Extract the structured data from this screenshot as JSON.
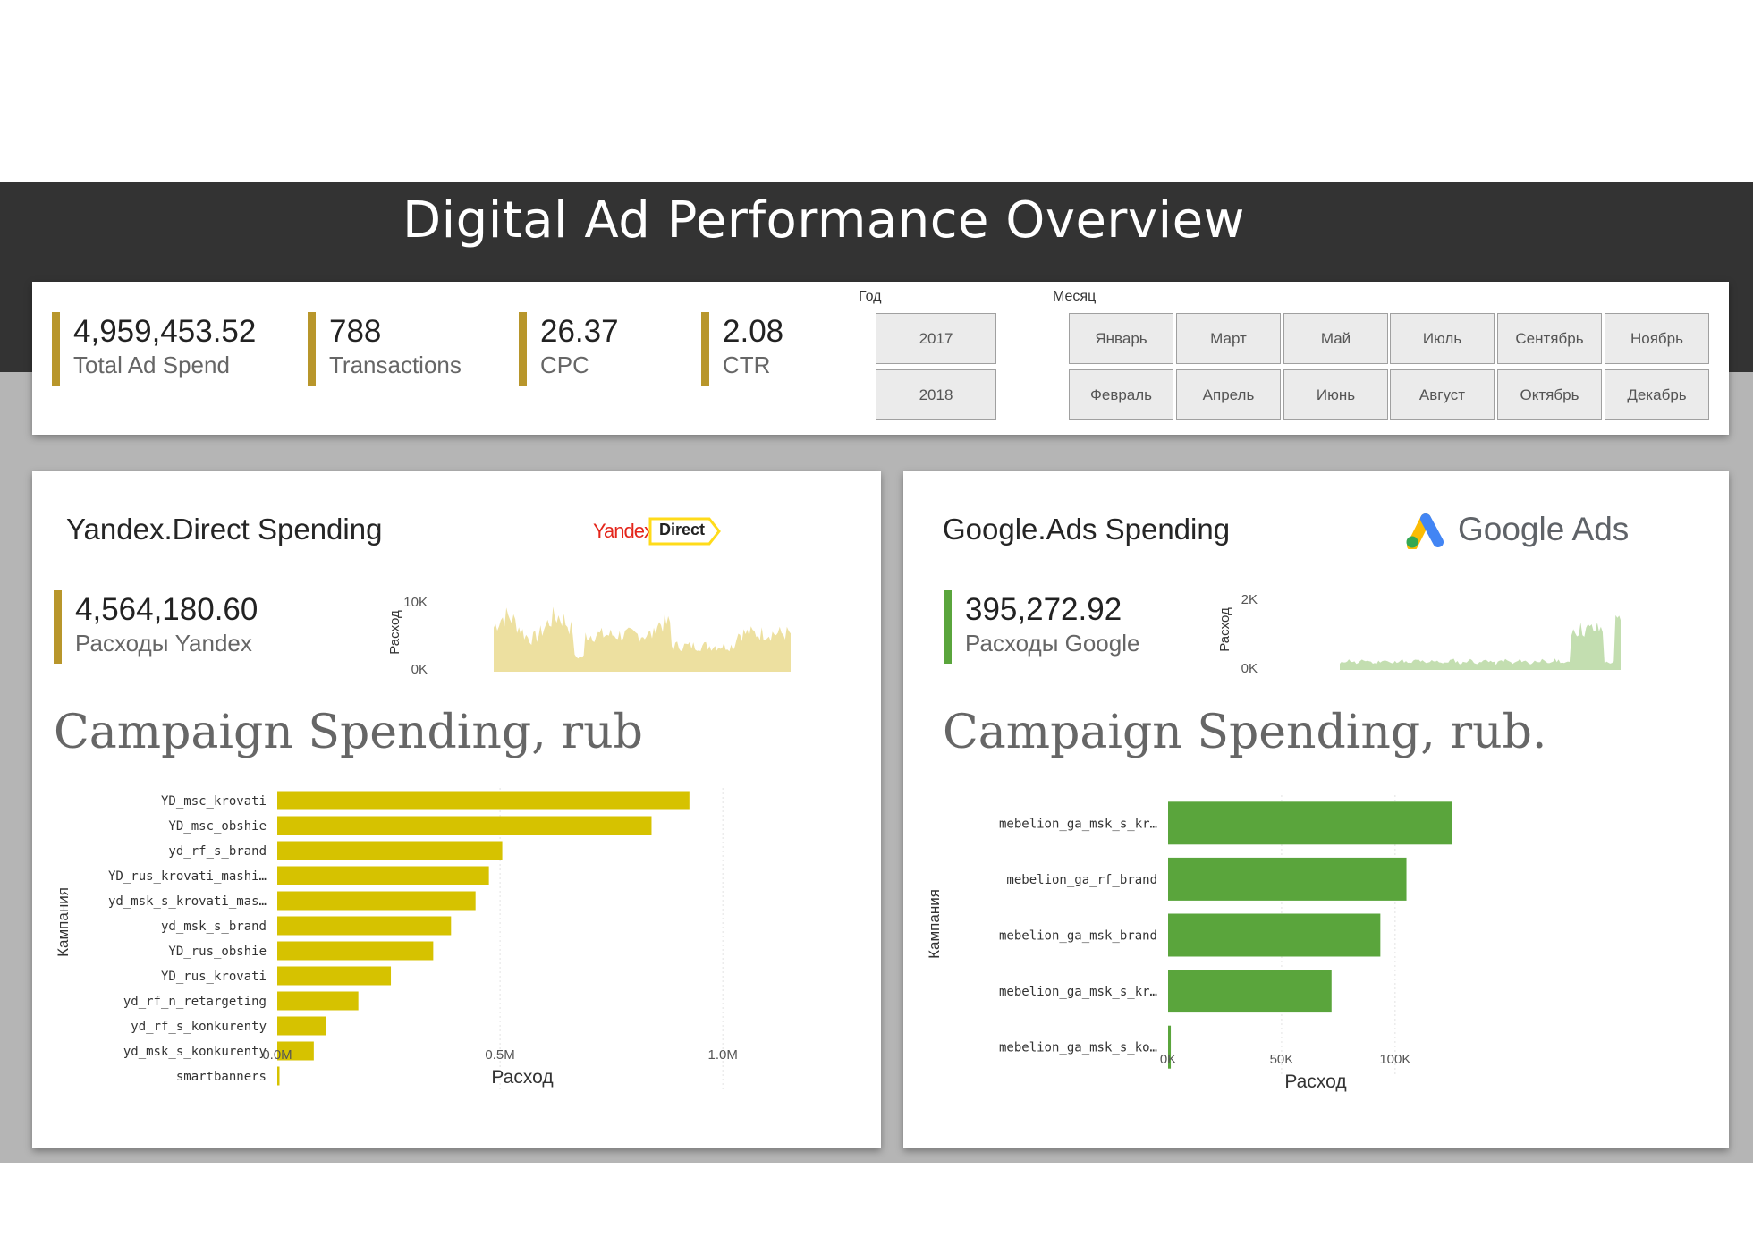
{
  "header": {
    "title": "Digital Ad Performance Overview"
  },
  "kpis": [
    {
      "value": "4,959,453.52",
      "label": "Total Ad Spend"
    },
    {
      "value": "788",
      "label": "Transactions"
    },
    {
      "value": "26.37",
      "label": "CPC"
    },
    {
      "value": "2.08",
      "label": "CTR"
    }
  ],
  "year_slicer": {
    "title": "Год",
    "options": [
      "2017",
      "2018"
    ]
  },
  "month_slicer": {
    "title": "Месяц",
    "options": [
      "Январь",
      "Март",
      "Май",
      "Июль",
      "Сентябрь",
      "Ноябрь",
      "Февраль",
      "Апрель",
      "Июнь",
      "Август",
      "Октябрь",
      "Декабрь"
    ]
  },
  "yandex": {
    "title": "Yandex.Direct Spending",
    "logo_text": "Yandex",
    "logo_badge": "Direct",
    "kpi_value": "4,564,180.60",
    "kpi_label": "Расходы Yandex",
    "spark_ylabel": "Расход",
    "spark_ticks": [
      "10K",
      "0K"
    ],
    "campaign_title": "Campaign Spending, rub",
    "accent": "#d6c200"
  },
  "google": {
    "title": "Google.Ads Spending",
    "logo_text": "Google Ads",
    "kpi_value": "395,272.92",
    "kpi_label": "Расходы Google",
    "spark_ylabel": "Расход",
    "spark_ticks": [
      "2K",
      "0K"
    ],
    "campaign_title": "Campaign Spending, rub.",
    "accent": "#5aa53c"
  },
  "chart_data": [
    {
      "type": "bar",
      "orientation": "horizontal",
      "title": "Campaign Spending, rub",
      "xlabel": "Расход",
      "ylabel": "Кампания",
      "xlim": [
        0,
        1100000
      ],
      "xticks": [
        0,
        500000,
        1000000
      ],
      "xtick_labels": [
        "0.0M",
        "0.5M",
        "1.0M"
      ],
      "categories": [
        "YD_msc_krovati",
        "YD_msc_obshie",
        "yd_rf_s_brand",
        "YD_rus_krovati_mashi…",
        "yd_msk_s_krovati_mas…",
        "yd_msk_s_brand",
        "YD_rus_obshie",
        "YD_rus_krovati",
        "yd_rf_n_retargeting",
        "yd_rf_s_konkurenty",
        "yd_msk_s_konkurenty",
        "smartbanners"
      ],
      "values": [
        925000,
        840000,
        505000,
        475000,
        445000,
        390000,
        350000,
        255000,
        182000,
        110000,
        82000,
        5000
      ]
    },
    {
      "type": "bar",
      "orientation": "horizontal",
      "title": "Campaign Spending, rub.",
      "xlabel": "Расход",
      "ylabel": "Кампания",
      "xlim": [
        0,
        130000
      ],
      "xticks": [
        0,
        50000,
        100000
      ],
      "xtick_labels": [
        "0K",
        "50K",
        "100K"
      ],
      "categories": [
        "mebelion_ga_msk_s_kr…",
        "mebelion_ga_rf_brand",
        "mebelion_ga_msk_brand",
        "mebelion_ga_msk_s_kr…",
        "mebelion_ga_msk_s_ko…"
      ],
      "values": [
        125000,
        105000,
        93500,
        72000,
        1200
      ]
    }
  ]
}
